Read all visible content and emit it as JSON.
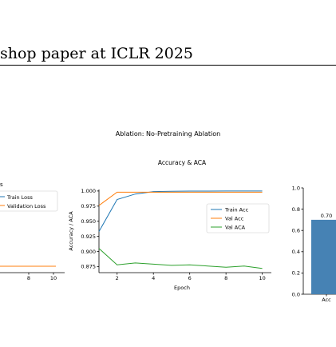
{
  "header": {
    "text": "shop paper at ICLR 2025"
  },
  "figure": {
    "suptitle": "Ablation: No-Pretraining Ablation"
  },
  "left_panel": {
    "title_fragment": "s",
    "legend": [
      "Train Loss",
      "Validation Loss"
    ],
    "x_ticks": [
      "8",
      "10"
    ]
  },
  "right_panel": {
    "y_ticks": [
      "0.0",
      "0.2",
      "0.4",
      "0.6",
      "0.8",
      "1.0"
    ],
    "bar_label": "0.70",
    "x_tick": "Acc",
    "bar_value": 0.7,
    "ylim": [
      0,
      1.0
    ]
  },
  "colors": {
    "blue": "#1f77b4",
    "orange": "#ff7f0e",
    "green": "#2ca02c",
    "bar": "#4682b4"
  },
  "chart_data": {
    "type": "line",
    "title": "Accuracy & ACA",
    "xlabel": "Epoch",
    "ylabel": "Accuracy / ACA",
    "xlim": [
      1,
      10.5
    ],
    "ylim": [
      0.865,
      1.0025
    ],
    "x_ticks": [
      2,
      4,
      6,
      8,
      10
    ],
    "y_ticks": [
      0.875,
      0.9,
      0.925,
      0.95,
      0.975,
      1.0
    ],
    "tick_labels_x": [
      "2",
      "4",
      "6",
      "8",
      "10"
    ],
    "tick_labels_y": [
      "0.875",
      "0.900",
      "0.925",
      "0.950",
      "0.975",
      "1.000"
    ],
    "legend_position": "center-right",
    "grid": false,
    "series": [
      {
        "name": "Train Acc",
        "color": "#1f77b4",
        "x": [
          1,
          2,
          3,
          4,
          5,
          6,
          7,
          8,
          9,
          10
        ],
        "y": [
          0.933,
          0.986,
          0.995,
          0.999,
          0.9995,
          0.9998,
          0.9999,
          1.0,
          1.0,
          1.0
        ]
      },
      {
        "name": "Val Acc",
        "color": "#ff7f0e",
        "x": [
          1,
          2,
          3,
          4,
          5,
          6,
          7,
          8,
          9,
          10
        ],
        "y": [
          0.976,
          0.998,
          0.998,
          0.998,
          0.998,
          0.998,
          0.998,
          0.998,
          0.998,
          0.998
        ]
      },
      {
        "name": "Val ACA",
        "color": "#2ca02c",
        "x": [
          1,
          2,
          3,
          4,
          5,
          6,
          7,
          8,
          9,
          10
        ],
        "y": [
          0.905,
          0.878,
          0.881,
          0.879,
          0.877,
          0.878,
          0.876,
          0.874,
          0.876,
          0.872
        ]
      }
    ]
  }
}
